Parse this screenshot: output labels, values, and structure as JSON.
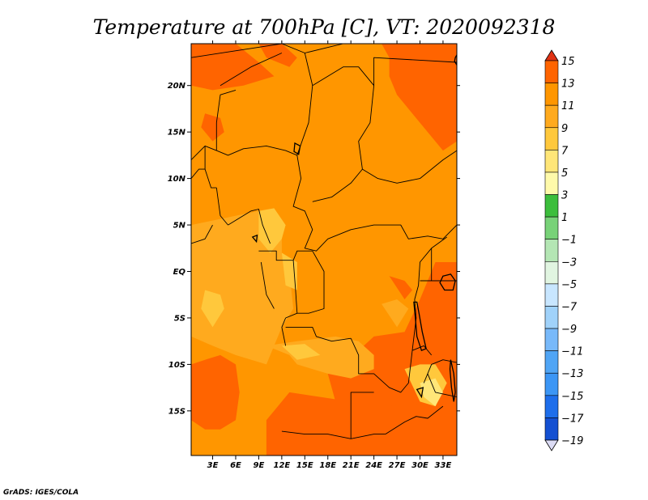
{
  "chart_data": {
    "type": "heatmap",
    "title": "Temperature at 700hPa [C], VT: 2020092318",
    "xlabel": "",
    "ylabel": "",
    "x_ticks": [
      "3E",
      "6E",
      "9E",
      "12E",
      "15E",
      "18E",
      "21E",
      "24E",
      "27E",
      "30E",
      "33E"
    ],
    "x_tick_values": [
      3,
      6,
      9,
      12,
      15,
      18,
      21,
      24,
      27,
      30,
      33
    ],
    "y_ticks": [
      "20N",
      "15N",
      "10N",
      "5N",
      "EQ",
      "5S",
      "10S",
      "15S"
    ],
    "y_tick_values": [
      20,
      15,
      10,
      5,
      0,
      -5,
      -10,
      -15
    ],
    "xlim": [
      0.2,
      34.8
    ],
    "ylim": [
      -19.8,
      24.5
    ],
    "units": "C",
    "field_description": "Temperature at 700hPa, mostly 9-13 C",
    "colorbar": {
      "levels": [
        15,
        13,
        11,
        9,
        7,
        5,
        3,
        1,
        -1,
        -3,
        -5,
        -7,
        -9,
        -11,
        -13,
        -15,
        -17,
        -19
      ],
      "labels": [
        "15",
        "13",
        "11",
        "9",
        "7",
        "5",
        "3",
        "1",
        "−1",
        "−3",
        "−5",
        "−7",
        "−9",
        "−11",
        "−13",
        "−15",
        "−17",
        "−19"
      ],
      "colors": [
        "#e03214",
        "#ff6400",
        "#ff9600",
        "#ffaa1e",
        "#ffc83c",
        "#ffe678",
        "#fffaaa",
        "#3cbe3c",
        "#78d278",
        "#b4e6b4",
        "#e1f5e1",
        "#c8e6ff",
        "#a0d2fa",
        "#78b9fa",
        "#50a5f5",
        "#3c96f5",
        "#1e6eeb",
        "#1450d2",
        "#0a28a0"
      ],
      "top_cap_color": "#e03214",
      "bottom_cap_color": "#dcdcf5"
    },
    "regions": [
      {
        "level": "13",
        "color": "#ff6400",
        "x": [
          0.2,
          6,
          9,
          11,
          7,
          3,
          0.2
        ],
        "y": [
          24.5,
          24.5,
          22.5,
          21,
          20,
          19.5,
          20
        ]
      },
      {
        "level": "13",
        "color": "#ff6400",
        "x": [
          9,
          12,
          14,
          13,
          10
        ],
        "y": [
          24.5,
          24.5,
          23,
          22,
          23
        ]
      },
      {
        "level": "13",
        "color": "#ff6400",
        "x": [
          25,
          34.8,
          34.8,
          33,
          31,
          29,
          27,
          26,
          26
        ],
        "y": [
          24.5,
          24.5,
          14,
          13,
          15,
          17,
          19,
          21,
          23
        ]
      },
      {
        "level": "13",
        "color": "#ff6400",
        "x": [
          2,
          4,
          4.5,
          3,
          1.5
        ],
        "y": [
          17,
          16.5,
          15,
          14,
          15.5
        ]
      },
      {
        "level": "13",
        "color": "#ff6400",
        "x": [
          24,
          28,
          30,
          32,
          34.8,
          34.8,
          31,
          27,
          24,
          21,
          19,
          18,
          20,
          22
        ],
        "y": [
          -7,
          -6.5,
          -3,
          1,
          1,
          -19.8,
          -19.8,
          -18,
          -16,
          -16,
          -14,
          -11,
          -9.5,
          -8.5
        ]
      },
      {
        "level": "13",
        "color": "#ff6400",
        "x": [
          10,
          13,
          17,
          21,
          24,
          26,
          29,
          31,
          34.8,
          34.8,
          10
        ],
        "y": [
          -16,
          -13,
          -13.5,
          -14,
          -15,
          -14.5,
          -14,
          -15,
          -15,
          -19.8,
          -19.8
        ]
      },
      {
        "level": "13",
        "color": "#ff6400",
        "x": [
          0.2,
          2,
          4,
          6,
          6.5,
          6,
          4,
          2,
          0.2
        ],
        "y": [
          -10,
          -9.5,
          -9,
          -10,
          -13,
          -16,
          -17,
          -17,
          -16
        ]
      },
      {
        "level": "13",
        "color": "#ff6400",
        "x": [
          26,
          28,
          29,
          28
        ],
        "y": [
          -0.5,
          -1,
          -2,
          -3
        ]
      },
      {
        "level": "9",
        "color": "#ffaa1e",
        "x": [
          0.2,
          9,
          11,
          12,
          12,
          13,
          13.5,
          12,
          10,
          6,
          3,
          0.2
        ],
        "y": [
          5,
          6.5,
          5,
          4,
          2,
          0,
          -4,
          -6,
          -10,
          -9,
          -8,
          -7
        ]
      },
      {
        "level": "9",
        "color": "#ffaa1e",
        "x": [
          10,
          14,
          19,
          22,
          24,
          24,
          21,
          18,
          14,
          13
        ],
        "y": [
          -8,
          -7.5,
          -7,
          -7.5,
          -9,
          -10.5,
          -11.5,
          -11,
          -10,
          -9
        ]
      },
      {
        "level": "9",
        "color": "#ffaa1e",
        "x": [
          25,
          27,
          28.5,
          27
        ],
        "y": [
          -3.5,
          -3,
          -4,
          -6
        ]
      },
      {
        "level": "7",
        "color": "#ffc83c",
        "x": [
          9,
          11,
          12.5,
          12,
          10.5,
          9
        ],
        "y": [
          6.5,
          6.8,
          5,
          3.5,
          2,
          3.5
        ]
      },
      {
        "level": "7",
        "color": "#ffc83c",
        "x": [
          12,
          14,
          14,
          12.5
        ],
        "y": [
          2,
          1,
          -2,
          -1.5
        ]
      },
      {
        "level": "7",
        "color": "#ffc83c",
        "x": [
          2,
          4,
          4.5,
          3,
          1.5
        ],
        "y": [
          -2,
          -2.5,
          -4,
          -6,
          -4
        ]
      },
      {
        "level": "7",
        "color": "#ffc83c",
        "x": [
          28,
          30,
          32,
          33.5,
          32,
          30
        ],
        "y": [
          -10.5,
          -10,
          -10,
          -12,
          -14.5,
          -14
        ]
      },
      {
        "level": "7",
        "color": "#ffc83c",
        "x": [
          12,
          15,
          17,
          14
        ],
        "y": [
          -8,
          -7.8,
          -9,
          -9.5
        ]
      },
      {
        "level": "5",
        "color": "#ffe678",
        "x": [
          30,
          32,
          33,
          32,
          30.5
        ],
        "y": [
          -12,
          -11.5,
          -13,
          -14.5,
          -13.5
        ]
      }
    ],
    "boundaries": [
      [
        [
          0.2,
          23
        ],
        [
          12,
          24.5
        ]
      ],
      [
        [
          12,
          24.5
        ],
        [
          15,
          23.5
        ],
        [
          20,
          24.5
        ]
      ],
      [
        [
          4,
          20
        ],
        [
          8,
          22
        ],
        [
          12,
          23.5
        ]
      ],
      [
        [
          6,
          19.5
        ],
        [
          4,
          19
        ],
        [
          3.5,
          16
        ],
        [
          3.5,
          13
        ]
      ],
      [
        [
          0.2,
          12
        ],
        [
          2,
          13.5
        ],
        [
          3.5,
          13
        ]
      ],
      [
        [
          2,
          13.5
        ],
        [
          2,
          11
        ],
        [
          2.8,
          9
        ],
        [
          3.5,
          9
        ]
      ],
      [
        [
          3.5,
          13
        ],
        [
          5,
          12.5
        ],
        [
          7,
          13.2
        ],
        [
          10,
          13.5
        ],
        [
          12.5,
          13
        ],
        [
          14,
          12.5
        ]
      ],
      [
        [
          14,
          12.5
        ],
        [
          14.5,
          10
        ],
        [
          13.5,
          7
        ],
        [
          15,
          6.5
        ],
        [
          16,
          4.5
        ],
        [
          15,
          2.5
        ],
        [
          16.5,
          2.2
        ],
        [
          18,
          3.5
        ],
        [
          21,
          4.5
        ],
        [
          24,
          5
        ],
        [
          27.5,
          5
        ],
        [
          28.5,
          3.5
        ],
        [
          31,
          3.8
        ],
        [
          33,
          3.5
        ],
        [
          34.8,
          5
        ]
      ],
      [
        [
          3.5,
          9
        ],
        [
          4,
          6
        ],
        [
          5,
          5
        ]
      ],
      [
        [
          5,
          5
        ],
        [
          8,
          6.5
        ],
        [
          9,
          6.7
        ],
        [
          9.5,
          5
        ],
        [
          10.5,
          3
        ]
      ],
      [
        [
          14,
          12.5
        ],
        [
          15.5,
          16
        ],
        [
          16,
          20
        ],
        [
          15,
          23.5
        ]
      ],
      [
        [
          16,
          20
        ],
        [
          20,
          22
        ],
        [
          22,
          22
        ],
        [
          24,
          20
        ],
        [
          24,
          23
        ],
        [
          34.8,
          22.5
        ]
      ],
      [
        [
          24,
          20
        ],
        [
          23.5,
          16
        ],
        [
          22,
          14
        ],
        [
          22.5,
          11
        ],
        [
          21,
          9.5
        ],
        [
          18.5,
          8
        ],
        [
          16,
          7.5
        ]
      ],
      [
        [
          22.5,
          11
        ],
        [
          24.5,
          10
        ],
        [
          27,
          9.5
        ],
        [
          30,
          10
        ],
        [
          33,
          12
        ],
        [
          34.8,
          13
        ]
      ],
      [
        [
          9,
          2.2
        ],
        [
          11.3,
          2.2
        ],
        [
          11.3,
          1.2
        ],
        [
          13.5,
          1.2
        ],
        [
          14,
          2.2
        ],
        [
          16,
          2.2
        ]
      ],
      [
        [
          9.3,
          1
        ],
        [
          10,
          -2.5
        ],
        [
          11,
          -4
        ]
      ],
      [
        [
          13.5,
          1.2
        ],
        [
          13.8,
          -2
        ],
        [
          14,
          -4.5
        ],
        [
          12.5,
          -5
        ]
      ],
      [
        [
          16,
          2.2
        ],
        [
          17.5,
          0
        ],
        [
          17.5,
          -4
        ],
        [
          15.5,
          -4.5
        ],
        [
          14,
          -4.5
        ]
      ],
      [
        [
          12.5,
          -5
        ],
        [
          12,
          -6
        ],
        [
          12.5,
          -8
        ]
      ],
      [
        [
          12.5,
          -6
        ],
        [
          16,
          -6
        ],
        [
          16.5,
          -7
        ],
        [
          18.5,
          -7.5
        ],
        [
          21,
          -7.2
        ]
      ],
      [
        [
          21,
          -7.2
        ],
        [
          22,
          -9
        ],
        [
          22,
          -11
        ],
        [
          24,
          -11
        ],
        [
          26,
          -12.5
        ],
        [
          27.5,
          -13
        ],
        [
          28.5,
          -12
        ],
        [
          29,
          -8.5
        ]
      ],
      [
        [
          29,
          -8.5
        ],
        [
          29.5,
          -5
        ],
        [
          29.3,
          -3
        ],
        [
          29.8,
          -1.5
        ],
        [
          30,
          1
        ],
        [
          31.5,
          2.5
        ],
        [
          33.5,
          3.7
        ]
      ],
      [
        [
          12,
          -17.2
        ],
        [
          15,
          -17.5
        ],
        [
          18,
          -17.5
        ],
        [
          21,
          -18
        ],
        [
          24,
          -17.5
        ],
        [
          25.5,
          -17.5
        ]
      ],
      [
        [
          21,
          -18
        ],
        [
          21,
          -13
        ],
        [
          24,
          -13
        ]
      ],
      [
        [
          25.5,
          -17.5
        ],
        [
          28,
          -16.2
        ],
        [
          29.5,
          -15.6
        ],
        [
          31,
          -15.8
        ],
        [
          33,
          -14.5
        ]
      ],
      [
        [
          30.5,
          -12
        ],
        [
          31.5,
          -10
        ],
        [
          33,
          -9.5
        ],
        [
          34.8,
          -9.8
        ]
      ],
      [
        [
          30,
          -1
        ],
        [
          31.5,
          -1
        ],
        [
          34.8,
          -1
        ]
      ],
      [
        [
          31.5,
          -1
        ],
        [
          31.5,
          2.5
        ]
      ],
      [
        [
          29,
          -8.5
        ],
        [
          30.5,
          -8
        ],
        [
          31.5,
          -9
        ]
      ],
      [
        [
          31,
          -11
        ],
        [
          32,
          -13
        ],
        [
          34.8,
          -13.5
        ]
      ],
      [
        [
          0.2,
          3
        ],
        [
          2,
          3.5
        ],
        [
          3,
          5
        ]
      ],
      [
        [
          0.2,
          10
        ],
        [
          1.2,
          11
        ],
        [
          2,
          11
        ]
      ]
    ],
    "lakes": [
      [
        [
          29.2,
          -3.3
        ],
        [
          29.4,
          -5
        ],
        [
          29.6,
          -7
        ],
        [
          30.2,
          -8.5
        ],
        [
          30.8,
          -8.3
        ],
        [
          30.3,
          -6.5
        ],
        [
          29.9,
          -4.6
        ],
        [
          29.6,
          -3.3
        ]
      ],
      [
        [
          33,
          -0.5
        ],
        [
          34,
          -0.3
        ],
        [
          34.6,
          -1
        ],
        [
          34.3,
          -2
        ],
        [
          33.2,
          -2
        ],
        [
          32.6,
          -1.2
        ]
      ],
      [
        [
          34,
          -9.5
        ],
        [
          34.4,
          -11
        ],
        [
          34.6,
          -13
        ],
        [
          34.4,
          -14
        ],
        [
          34.1,
          -12.5
        ],
        [
          33.9,
          -10.5
        ]
      ],
      [
        [
          29.6,
          -12.7
        ],
        [
          30.4,
          -12.5
        ],
        [
          30.2,
          -13.5
        ]
      ],
      [
        [
          13.7,
          13.8
        ],
        [
          14.4,
          13.5
        ],
        [
          14.2,
          12.6
        ],
        [
          13.6,
          12.9
        ]
      ],
      [
        [
          8.2,
          3.7
        ],
        [
          8.8,
          3.9
        ],
        [
          8.7,
          3.2
        ]
      ],
      [
        [
          34.6,
          23
        ],
        [
          34.8,
          23.3
        ],
        [
          34.8,
          22.2
        ],
        [
          34.5,
          22.6
        ]
      ]
    ]
  },
  "footer": {
    "credit": "GrADS: IGES/COLA"
  }
}
